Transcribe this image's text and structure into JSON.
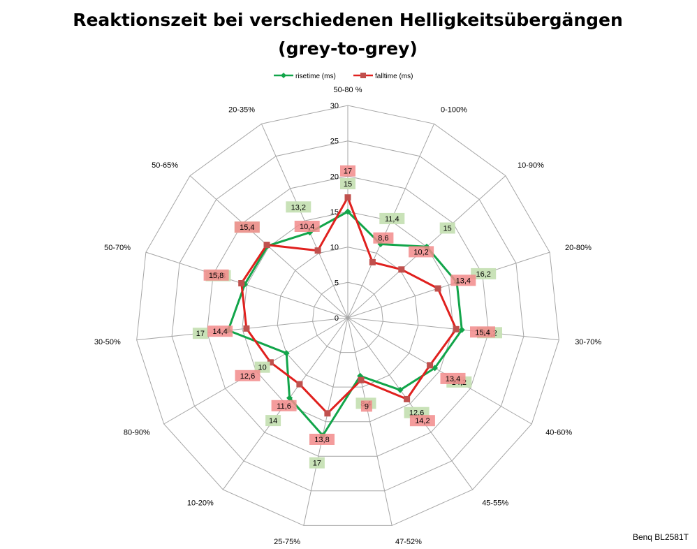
{
  "chart_data": {
    "type": "radar",
    "title_line1": "Reaktionszeit bei verschiedenen Helligkeitsübergängen",
    "title_line2": "(grey-to-grey)",
    "categories": [
      "50-80 %",
      "0-100%",
      "10-90%",
      "20-80%",
      "30-70%",
      "40-60%",
      "45-55%",
      "47-52%",
      "25-75%",
      "10-20%",
      "80-90%",
      "30-50%",
      "50-70%",
      "50-65%",
      "20-35%"
    ],
    "r_ticks": [
      "0",
      "5",
      "10",
      "15",
      "20",
      "25",
      "30"
    ],
    "rlim": [
      0,
      30
    ],
    "legend_position": "top",
    "series": [
      {
        "name": "risetime (ms)",
        "color": "#12A54A",
        "label_bg": "#C6E0B4",
        "values": [
          15,
          11.4,
          15,
          16.2,
          16.2,
          14.2,
          12.6,
          8.4,
          17,
          14,
          10,
          17,
          15.3,
          15.2,
          13.2
        ],
        "labels": [
          "15",
          "11,4",
          "15",
          "16,2",
          "16,2",
          "14,2",
          "12,6",
          "8,4",
          "17",
          "14",
          "10",
          "17",
          "15,3",
          "15,2",
          "13,2"
        ]
      },
      {
        "name": "falltime (ms)",
        "color": "#E0201E",
        "label_bg": "#F28B8B",
        "values": [
          17,
          8.6,
          10.2,
          13.4,
          15.4,
          13.4,
          14.2,
          9,
          13.8,
          11.6,
          12.6,
          14.4,
          15.8,
          15.4,
          10.4
        ],
        "labels": [
          "17",
          "8,6",
          "10,2",
          "13,4",
          "15,4",
          "13,4",
          "14,2",
          "9",
          "13,8",
          "11,6",
          "12,6",
          "14,4",
          "15,8",
          "15,4",
          "10,4"
        ]
      }
    ]
  },
  "footer": {
    "brand": "Benq BL2581T"
  }
}
